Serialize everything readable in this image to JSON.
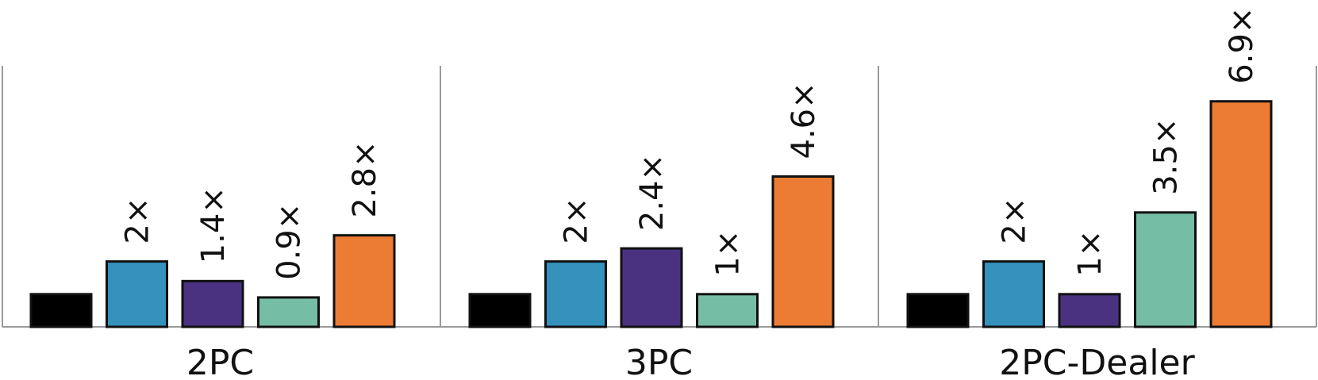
{
  "chart_data": {
    "type": "bar",
    "categories": [
      "2PC",
      "3PC",
      "2PC-Dealer"
    ],
    "series": [
      {
        "values": [
          1,
          1,
          1
        ],
        "labels": [
          "",
          "",
          ""
        ],
        "color": "#000000"
      },
      {
        "values": [
          2,
          2,
          2
        ],
        "labels": [
          "2×",
          "2×",
          "2×"
        ],
        "color": "#3492bd"
      },
      {
        "values": [
          1.4,
          2.4,
          1
        ],
        "labels": [
          "1.4×",
          "2.4×",
          "1×"
        ],
        "color": "#4a3280"
      },
      {
        "values": [
          0.9,
          1,
          3.5
        ],
        "labels": [
          "0.9×",
          "1×",
          "3.5×"
        ],
        "color": "#76bda5"
      },
      {
        "values": [
          2.8,
          4.6,
          6.9
        ],
        "labels": [
          "2.8×",
          "4.6×",
          "6.9×"
        ],
        "color": "#ec7c33"
      }
    ],
    "ylim": [
      0,
      8
    ],
    "grid": false
  }
}
